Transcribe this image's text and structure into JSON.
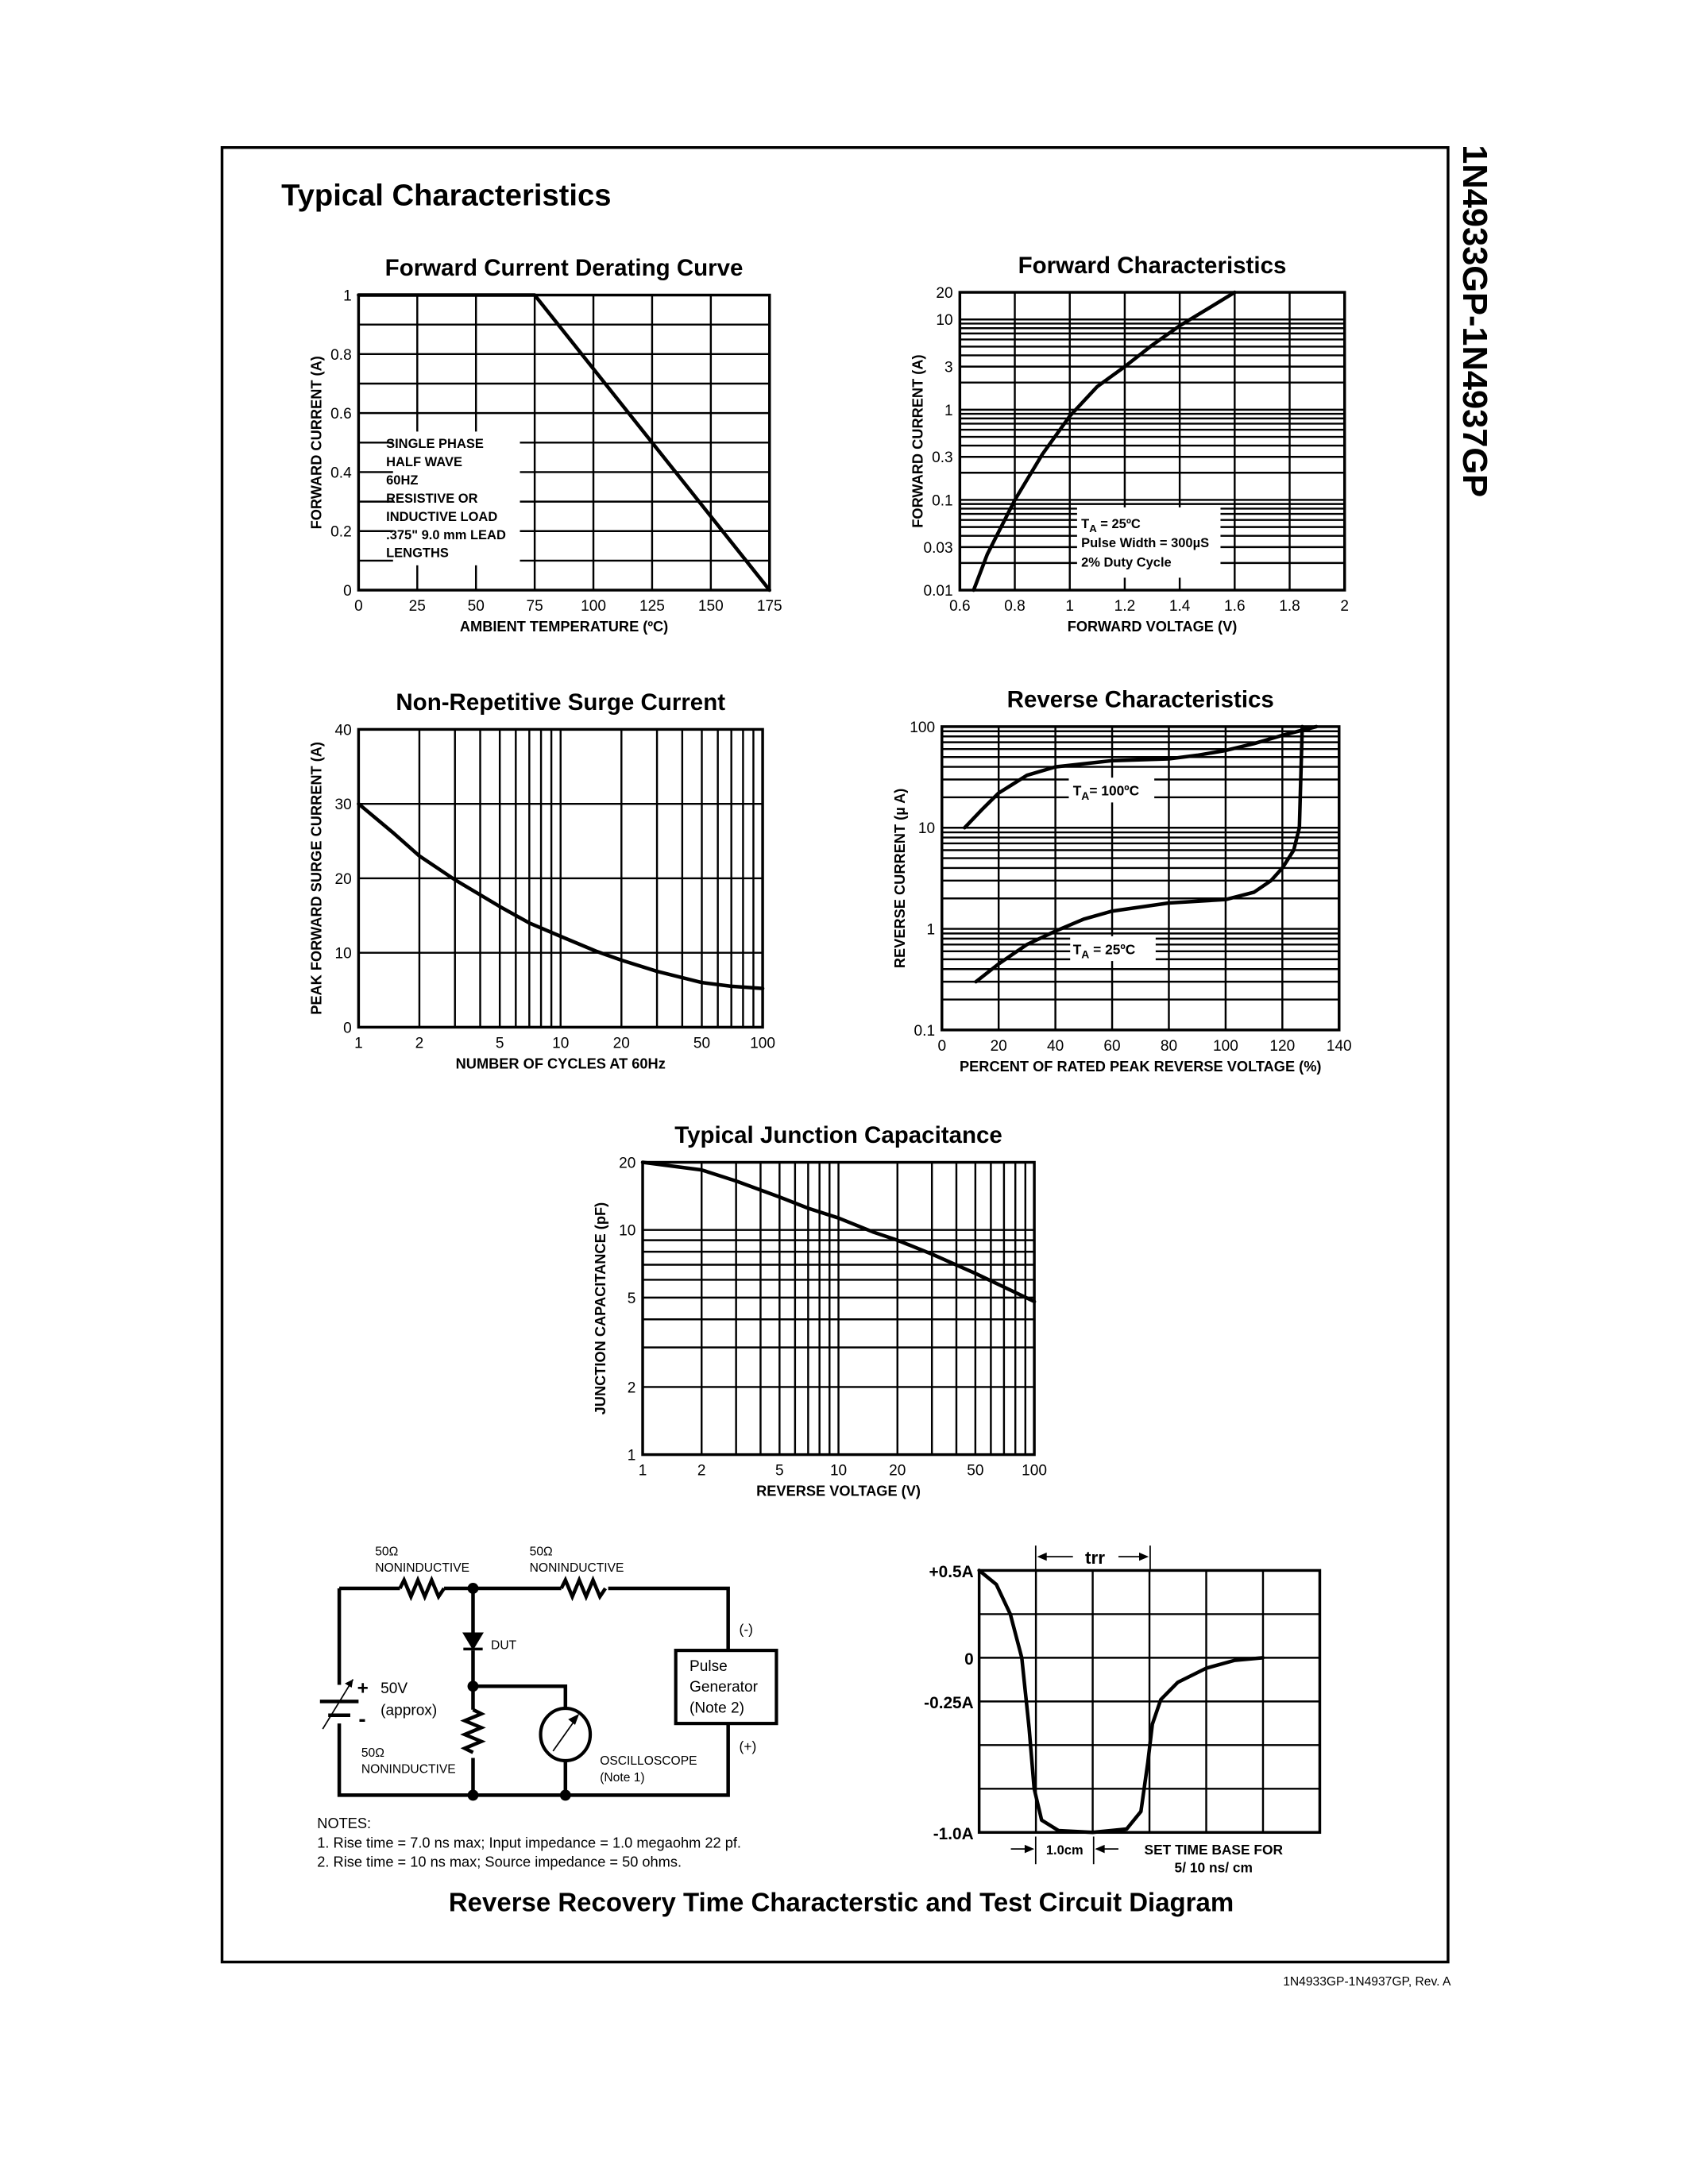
{
  "side_title": "1N4933GP-1N4937GP",
  "section_title": "Typical Characteristics",
  "footer": "1N4933GP-1N4937GP, Rev. A",
  "chart_data": [
    {
      "type": "line",
      "title": "Forward Current Derating Curve",
      "xlabel": "AMBIENT TEMPERATURE (ºC)",
      "ylabel": "FORWARD CURRENT (A)",
      "xscale": "linear",
      "yscale": "linear",
      "xlim": [
        0,
        175
      ],
      "ylim": [
        0,
        1
      ],
      "xticks": [
        "0",
        "25",
        "50",
        "75",
        "100",
        "125",
        "150",
        "175"
      ],
      "yticks": [
        "0",
        "0.2",
        "0.4",
        "0.6",
        "0.8",
        "1"
      ],
      "xgrid": [
        0,
        25,
        50,
        75,
        100,
        125,
        150,
        175
      ],
      "ygrid": [
        0,
        0.1,
        0.2,
        0.3,
        0.4,
        0.5,
        0.6,
        0.7,
        0.8,
        0.9,
        1
      ],
      "grid": true,
      "series": [
        {
          "name": "derating",
          "points": [
            [
              0,
              1
            ],
            [
              75,
              1
            ],
            [
              175,
              0
            ]
          ]
        }
      ],
      "legend_lines": [
        "SINGLE PHASE",
        "HALF WAVE",
        "60HZ",
        "RESISTIVE OR",
        "INDUCTIVE LOAD",
        ".375\" 9.0 mm LEAD",
        "LENGTHS"
      ]
    },
    {
      "type": "line",
      "title": "Forward Characteristics",
      "xlabel": "FORWARD VOLTAGE (V)",
      "ylabel": "FORWARD CURRENT (A)",
      "xscale": "linear",
      "yscale": "log",
      "xlim": [
        0.6,
        2
      ],
      "ylim": [
        0.01,
        20
      ],
      "xticks": [
        "0.6",
        "0.8",
        "1",
        "1.2",
        "1.4",
        "1.6",
        "1.8",
        "2"
      ],
      "yticks": [
        "0.01",
        "0.03",
        "0.1",
        "0.3",
        "1",
        "3",
        "10",
        "20"
      ],
      "xgrid": [
        0.6,
        0.8,
        1,
        1.2,
        1.4,
        1.6,
        1.8,
        2
      ],
      "ygrid": "log",
      "grid": true,
      "series": [
        {
          "name": "TA=25C",
          "points": [
            [
              0.65,
              0.01
            ],
            [
              0.7,
              0.025
            ],
            [
              0.8,
              0.1
            ],
            [
              0.9,
              0.32
            ],
            [
              1.0,
              0.85
            ],
            [
              1.1,
              1.8
            ],
            [
              1.2,
              3.0
            ],
            [
              1.3,
              5.2
            ],
            [
              1.4,
              8.5
            ],
            [
              1.5,
              13
            ],
            [
              1.6,
              20
            ]
          ]
        }
      ],
      "legend_lines": [
        {
          "main": "T",
          "sub": "A",
          "rest": " = 25ºC"
        },
        "Pulse Width = 300µS",
        "2% Duty Cycle"
      ]
    },
    {
      "type": "line",
      "title": "Non-Repetitive Surge Current",
      "xlabel": "NUMBER OF CYCLES AT 60Hz",
      "ylabel": "PEAK FORWARD SURGE CURRENT (A)",
      "xscale": "log",
      "yscale": "linear",
      "xlim": [
        1,
        100
      ],
      "ylim": [
        0,
        40
      ],
      "xticks": [
        "1",
        "2",
        "5",
        "10",
        "20",
        "50",
        "100"
      ],
      "yticks": [
        "0",
        "10",
        "20",
        "30",
        "40"
      ],
      "xgrid": "log",
      "ygrid": [
        0,
        10,
        20,
        30,
        40
      ],
      "grid": true,
      "series": [
        {
          "name": "surge",
          "points": [
            [
              1,
              30
            ],
            [
              1.5,
              26
            ],
            [
              2,
              23
            ],
            [
              3,
              19.8
            ],
            [
              5,
              16.2
            ],
            [
              7,
              14
            ],
            [
              10,
              12.2
            ],
            [
              15,
              10.2
            ],
            [
              20,
              9
            ],
            [
              30,
              7.5
            ],
            [
              50,
              6
            ],
            [
              70,
              5.5
            ],
            [
              100,
              5.2
            ]
          ]
        }
      ]
    },
    {
      "type": "line",
      "title": "Reverse Characteristics",
      "xlabel": "PERCENT OF RATED PEAK REVERSE VOLTAGE (%)",
      "ylabel": "REVERSE CURRENT (µ A)",
      "xscale": "linear",
      "yscale": "log",
      "xlim": [
        0,
        140
      ],
      "ylim": [
        0.1,
        100
      ],
      "xticks": [
        "0",
        "20",
        "40",
        "60",
        "80",
        "100",
        "120",
        "140"
      ],
      "yticks": [
        "0.1",
        "1",
        "10",
        "100"
      ],
      "xgrid": [
        0,
        20,
        40,
        60,
        80,
        100,
        120,
        140
      ],
      "ygrid": "log",
      "grid": true,
      "series": [
        {
          "name": "TA=100C",
          "label": {
            "main": "T",
            "sub": "A",
            "rest": "= 100ºC"
          },
          "points": [
            [
              8,
              10
            ],
            [
              14,
              15
            ],
            [
              20,
              22
            ],
            [
              30,
              33
            ],
            [
              40,
              40
            ],
            [
              60,
              46
            ],
            [
              80,
              48
            ],
            [
              90,
              52
            ],
            [
              100,
              58
            ],
            [
              110,
              68
            ],
            [
              120,
              82
            ],
            [
              132,
              100
            ]
          ]
        },
        {
          "name": "TA=25C",
          "label": {
            "main": "T",
            "sub": "A",
            "rest": " = 25ºC"
          },
          "points": [
            [
              12,
              0.3
            ],
            [
              20,
              0.45
            ],
            [
              30,
              0.7
            ],
            [
              40,
              0.95
            ],
            [
              50,
              1.25
            ],
            [
              60,
              1.5
            ],
            [
              80,
              1.8
            ],
            [
              100,
              1.95
            ],
            [
              110,
              2.3
            ],
            [
              116,
              3
            ],
            [
              120,
              4
            ],
            [
              124,
              6
            ],
            [
              126,
              10
            ],
            [
              126.5,
              30
            ],
            [
              127,
              100
            ]
          ]
        }
      ]
    },
    {
      "type": "line",
      "title": "Typical Junction Capacitance",
      "xlabel": "REVERSE VOLTAGE (V)",
      "ylabel": "JUNCTION CAPACITANCE (pF)",
      "xscale": "log",
      "yscale": "log",
      "xlim": [
        1,
        100
      ],
      "ylim": [
        1,
        20
      ],
      "xticks": [
        "1",
        "2",
        "5",
        "10",
        "20",
        "50",
        "100"
      ],
      "yticks": [
        "1",
        "2",
        "5",
        "10",
        "20"
      ],
      "xgrid": "log",
      "ygrid": "log",
      "grid": true,
      "series": [
        {
          "name": "Cj",
          "points": [
            [
              1,
              20
            ],
            [
              2,
              18.5
            ],
            [
              3,
              16.5
            ],
            [
              5,
              14
            ],
            [
              7,
              12.5
            ],
            [
              10,
              11.3
            ],
            [
              15,
              9.8
            ],
            [
              20,
              9
            ],
            [
              30,
              7.8
            ],
            [
              50,
              6.4
            ],
            [
              100,
              4.8
            ]
          ]
        }
      ]
    }
  ],
  "circuit": {
    "r1_value": "50Ω",
    "r1_type": "NONINDUCTIVE",
    "r2_value": "50Ω",
    "r2_type": "NONINDUCTIVE",
    "r3_value": "50Ω",
    "r3_type": "NONINDUCTIVE",
    "dut": "DUT",
    "battery_value": "50V",
    "battery_note": "(approx)",
    "battery_plus": "+",
    "battery_minus": "-",
    "pulse_gen": [
      "Pulse",
      "Generator",
      "(Note 2)"
    ],
    "neg": "(-)",
    "pos": "(+)",
    "scope": "OSCILLOSCOPE",
    "scope_note": "(Note 1)",
    "notes_title": "NOTES:",
    "notes": [
      "1. Rise time = 7.0 ns max; Input impedance = 1.0 megaohm 22 pf.",
      "2. Rise time = 10 ns max; Source impedance = 50 ohms."
    ]
  },
  "reverse_recovery": {
    "trr": "trr",
    "ylabels": [
      "+0.5A",
      "0",
      "-0.25A",
      "-1.0A"
    ],
    "ylabel_values": [
      0.5,
      0,
      -0.25,
      -1.0
    ],
    "ylim": [
      -1.0,
      0.5
    ],
    "xdivisions": 6,
    "div_label": "1.0cm",
    "timebase": [
      "SET TIME BASE FOR",
      "5/ 10 ns/ cm"
    ],
    "waveform": [
      [
        0,
        0.5
      ],
      [
        0.3,
        0.42
      ],
      [
        0.55,
        0.25
      ],
      [
        0.75,
        0.0
      ],
      [
        0.88,
        -0.4
      ],
      [
        0.97,
        -0.75
      ],
      [
        1.1,
        -0.93
      ],
      [
        1.4,
        -0.99
      ],
      [
        2,
        -1.0
      ],
      [
        2.6,
        -0.98
      ],
      [
        2.85,
        -0.88
      ],
      [
        2.97,
        -0.6
      ],
      [
        3.05,
        -0.38
      ],
      [
        3.2,
        -0.24
      ],
      [
        3.5,
        -0.14
      ],
      [
        4.0,
        -0.06
      ],
      [
        4.5,
        -0.015
      ],
      [
        5,
        0
      ]
    ]
  },
  "bottom_title": "Reverse Recovery Time Characterstic and Test Circuit Diagram"
}
